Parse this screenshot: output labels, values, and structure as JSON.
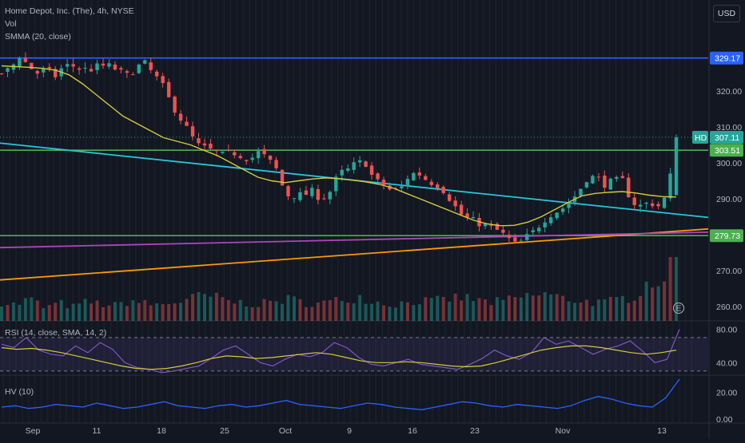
{
  "header": {
    "symbol_line": "Home Depot, Inc. (The), 4h, NYSE",
    "vol_label": "Vol",
    "smma_label": "SMMA (20, close)",
    "currency_button": "USD"
  },
  "rsi_panel": {
    "label": "RSI (14, close, SMA, 14, 2)"
  },
  "hv_panel": {
    "label": "HV (10)"
  },
  "earnings_marker": "E",
  "colors": {
    "background": "#131722",
    "up": "#26a69a",
    "down": "#ef5350",
    "smma": "#d4c93a",
    "blue_level": "#2962ff",
    "green_level": "#4caf50",
    "cyan_trend": "#26c6da",
    "orange_trend": "#ff9800",
    "purple_trend": "#ab47bc",
    "rsi_line": "#7e57c2",
    "hv_line": "#2962ff",
    "last_price_tag": "#26a69a"
  },
  "chart_data": [
    {
      "type": "candlestick",
      "title": "Home Depot, Inc. (The), 4h, NYSE",
      "y_axis": {
        "ticks": [
          260.0,
          270.0,
          280.0,
          290.0,
          300.0,
          310.0,
          320.0
        ],
        "range": [
          256,
          336
        ]
      },
      "x_axis": {
        "tick_labels": [
          "Sep",
          "11",
          "18",
          "25",
          "Oct",
          "9",
          "16",
          "23",
          "Nov",
          "13"
        ]
      },
      "price_labels": [
        {
          "value": 329.17,
          "label": "329.17",
          "color": "#2962ff"
        },
        {
          "value": 307.11,
          "label": "307.11",
          "color": "#26a69a",
          "ticker": "HD"
        },
        {
          "value": 303.51,
          "label": "303.51",
          "color": "#4caf50"
        },
        {
          "value": 279.73,
          "label": "279.73",
          "color": "#4caf50"
        }
      ],
      "horizontal_levels": [
        329.17,
        303.51,
        279.73
      ],
      "trendlines": [
        {
          "name": "cyan",
          "from": [
            "Aug 30",
            305.5
          ],
          "to": [
            "Nov 15",
            284.8
          ]
        },
        {
          "name": "orange",
          "from": [
            "Aug 30",
            267.4
          ],
          "to": [
            "Nov 15",
            281.6
          ]
        },
        {
          "name": "purple",
          "from": [
            "Aug 30",
            276.4
          ],
          "to": [
            "Nov 15",
            280.7
          ]
        }
      ],
      "close_path": [
        325,
        326,
        330,
        327,
        325,
        326,
        324,
        327,
        327,
        326,
        326,
        327,
        327,
        326,
        324,
        326,
        328,
        325,
        322,
        317,
        313,
        309,
        305,
        304,
        303,
        302,
        303,
        302,
        301,
        303,
        301,
        298,
        291,
        291,
        291,
        292,
        290,
        292,
        297,
        298,
        300,
        300,
        295,
        294,
        292,
        293,
        297,
        297,
        295,
        294,
        292,
        288,
        285,
        284,
        283,
        282,
        281,
        279,
        277,
        279,
        281,
        284,
        286,
        287,
        289,
        292,
        296,
        296,
        294,
        295,
        295,
        289,
        288,
        289,
        288,
        291,
        307.11
      ],
      "smma_path": [
        327,
        326.8,
        326.6,
        326.3,
        325.8,
        324.5,
        322,
        319,
        316,
        313,
        311,
        309,
        307,
        306,
        305,
        303.5,
        302,
        300,
        298,
        296,
        295,
        294.5,
        295,
        295.5,
        295.8,
        295.6,
        295.2,
        294.7,
        294,
        293,
        291.5,
        290,
        288.5,
        287,
        285.5,
        284,
        283,
        282.5,
        282.6,
        283.5,
        285,
        287,
        289,
        290.8,
        291.5,
        291.8,
        292,
        291.6,
        291,
        290.6,
        290.5
      ],
      "volume_profile": [
        0.3,
        0.25,
        0.35,
        0.2,
        0.28,
        0.22,
        0.3,
        0.26,
        0.24,
        0.32,
        0.27,
        0.25,
        0.29,
        0.33,
        0.4,
        0.36,
        0.3,
        0.28,
        0.26,
        0.31,
        0.34,
        0.29,
        0.27,
        0.3,
        0.35,
        0.38,
        0.3,
        0.26,
        0.28,
        0.32,
        0.3,
        0.34,
        0.37,
        0.33,
        0.29,
        0.31,
        0.36,
        0.4,
        0.42,
        0.35,
        0.33,
        0.3,
        0.28,
        0.34,
        0.38,
        0.6,
        0.65,
        1.0
      ]
    },
    {
      "type": "line",
      "title": "RSI (14, close, SMA, 14, 2)",
      "y_axis": {
        "ticks": [
          40.0,
          80.0
        ],
        "range": [
          25,
          90
        ]
      },
      "bands": [
        70,
        30
      ],
      "rsi_path": [
        62,
        58,
        70,
        55,
        50,
        48,
        60,
        52,
        64,
        56,
        40,
        34,
        32,
        28,
        30,
        33,
        36,
        45,
        55,
        60,
        50,
        40,
        36,
        44,
        50,
        47,
        52,
        64,
        58,
        46,
        38,
        36,
        40,
        44,
        38,
        36,
        34,
        32,
        38,
        45,
        55,
        48,
        44,
        52,
        70,
        62,
        66,
        58,
        50,
        56,
        60,
        66,
        54,
        40,
        44,
        80
      ],
      "ma_path": [
        58,
        56,
        57,
        55,
        52,
        48,
        44,
        40,
        36,
        33,
        32,
        33,
        36,
        40,
        45,
        48,
        47,
        45,
        46,
        48,
        50,
        52,
        50,
        46,
        42,
        40,
        40,
        41,
        40,
        38,
        36,
        35,
        36,
        40,
        45,
        50,
        55,
        58,
        60,
        60,
        58,
        55,
        52,
        50,
        52,
        55
      ]
    },
    {
      "type": "line",
      "title": "HV (10)",
      "y_axis": {
        "ticks": [
          0.0,
          20.0
        ],
        "range": [
          -3,
          33
        ]
      },
      "hv_path": [
        9,
        10,
        8,
        9,
        11,
        10,
        9,
        12,
        10,
        8,
        9,
        11,
        13,
        10,
        9,
        8,
        10,
        11,
        9,
        10,
        12,
        14,
        11,
        10,
        9,
        8,
        10,
        12,
        11,
        9,
        8,
        7,
        9,
        11,
        13,
        12,
        10,
        9,
        11,
        10,
        9,
        8,
        10,
        14,
        17,
        15,
        12,
        10,
        9,
        16,
        30
      ]
    }
  ]
}
